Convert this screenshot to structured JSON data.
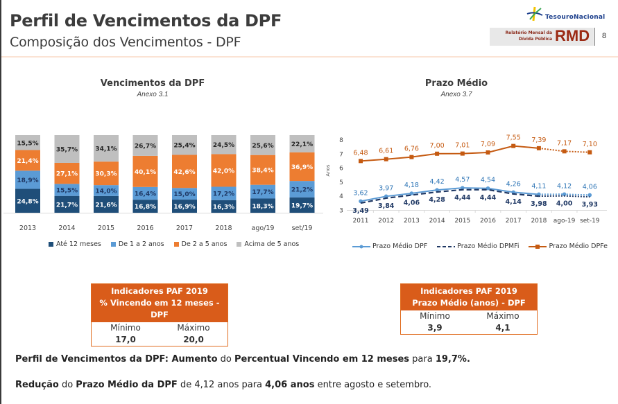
{
  "header": {
    "title": "Perfil de Vencimentos da DPF",
    "subtitle": "Composição dos Vencimentos - DPF",
    "logo_text": "TesouroNacional",
    "report_name_line1": "Relatório Mensal da",
    "report_name_line2": "Dívida Pública",
    "report_abbr": "RMD",
    "page_number": "8"
  },
  "colors": {
    "ate12": "#1f4e79",
    "de1a2": "#5b9bd5",
    "de2a5": "#ed7d31",
    "acima5": "#bfbfbf",
    "dpf_line": "#5b9bd5",
    "dpmfi_line": "#1f3864",
    "dpfe_line": "#c55a11",
    "paf_header": "#d95c1a"
  },
  "chart_data": [
    {
      "type": "bar",
      "stacked": true,
      "title": "Vencimentos da DPF",
      "subtitle": "Anexo 3.1",
      "categories": [
        "2013",
        "2014",
        "2015",
        "2016",
        "2017",
        "2018",
        "ago/19",
        "set/19"
      ],
      "series": [
        {
          "name": "Até 12 meses",
          "values": [
            24.8,
            21.7,
            21.6,
            16.8,
            16.9,
            16.3,
            18.3,
            19.7
          ],
          "labels": [
            "24,8%",
            "21,7%",
            "21,6%",
            "16,8%",
            "16,9%",
            "16,3%",
            "18,3%",
            "19,7%"
          ]
        },
        {
          "name": "De 1 a 2 anos",
          "values": [
            18.9,
            15.5,
            14.0,
            16.4,
            15.0,
            17.2,
            17.7,
            21.2
          ],
          "labels": [
            "18,9%",
            "15,5%",
            "14,0%",
            "16,4%",
            "15,0%",
            "17,2%",
            "17,7%",
            "21,2%"
          ]
        },
        {
          "name": "De 2 a 5 anos",
          "values": [
            21.4,
            27.1,
            30.3,
            40.1,
            42.6,
            42.0,
            38.4,
            36.9
          ],
          "labels": [
            "21,4%",
            "27,1%",
            "30,3%",
            "40,1%",
            "42,6%",
            "42,0%",
            "38,4%",
            "36,9%"
          ]
        },
        {
          "name": "Acima de 5 anos",
          "values": [
            15.5,
            35.7,
            34.1,
            26.7,
            25.4,
            24.5,
            25.6,
            22.1
          ],
          "labels": [
            "15,5%",
            "35,7%",
            "34,1%",
            "26,7%",
            "25,4%",
            "24,5%",
            "25,6%",
            "22,1%"
          ]
        }
      ],
      "ylim": [
        0,
        100
      ],
      "legend": "bottom"
    },
    {
      "type": "line",
      "title": "Prazo Médio",
      "subtitle": "Anexo 3.7",
      "ylabel": "Anos",
      "categories": [
        "2011",
        "2012",
        "2013",
        "2014",
        "2015",
        "2016",
        "2017",
        "2018",
        "ago-19",
        "set-19"
      ],
      "yticks": [
        "3",
        "4",
        "5",
        "6",
        "7",
        "8"
      ],
      "ylim": [
        3,
        8
      ],
      "series": [
        {
          "name": "Prazo Médio DPF",
          "values": [
            3.62,
            3.97,
            4.18,
            4.42,
            4.57,
            4.54,
            4.26,
            4.11,
            4.12,
            4.06
          ],
          "labels": [
            "3,62",
            "3,97",
            "4,18",
            "4,42",
            "4,57",
            "4,54",
            "4,26",
            "4,11",
            "4,12",
            "4,06"
          ]
        },
        {
          "name": "Prazo Médio DPMFi",
          "values": [
            3.49,
            3.84,
            4.06,
            4.28,
            4.44,
            4.44,
            4.14,
            3.98,
            4.0,
            3.93
          ],
          "labels": [
            "3,49",
            "3,84",
            "4,06",
            "4,28",
            "4,44",
            "4,44",
            "4,14",
            "3,98",
            "4,00",
            "3,93"
          ]
        },
        {
          "name": "Prazo Médio DPFe",
          "values": [
            6.48,
            6.61,
            6.76,
            7.0,
            7.01,
            7.09,
            7.55,
            7.39,
            7.17,
            7.1
          ],
          "labels": [
            "6,48",
            "6,61",
            "6,76",
            "7,00",
            "7,01",
            "7,09",
            "7,55",
            "7,39",
            "7,17",
            "7,10"
          ]
        }
      ],
      "legend": "bottom"
    }
  ],
  "paf_left": {
    "header_line1": "Indicadores PAF 2019",
    "header_line2": "% Vincendo em 12 meses - DPF",
    "min_label": "Mínimo",
    "max_label": "Máximo",
    "min_value": "17,0",
    "max_value": "20,0"
  },
  "paf_right": {
    "header_line1": "Indicadores PAF 2019",
    "header_line2": "Prazo Médio (anos) - DPF",
    "min_label": "Mínimo",
    "max_label": "Máximo",
    "min_value": "3,9",
    "max_value": "4,1"
  },
  "notes": {
    "line1": [
      {
        "text": "Perfil de Vencimentos da DPF: ",
        "bold": true
      },
      {
        "text": "Aumento",
        "bold": true
      },
      {
        "text": " do ",
        "bold": false
      },
      {
        "text": "Percentual Vincendo em 12 meses",
        "bold": true
      },
      {
        "text": " para ",
        "bold": false
      },
      {
        "text": "19,7%.",
        "bold": true
      }
    ],
    "line2": [
      {
        "text": "Redução",
        "bold": true
      },
      {
        "text": " do ",
        "bold": false
      },
      {
        "text": "Prazo Médio da DPF",
        "bold": true
      },
      {
        "text": " de 4,12 anos para ",
        "bold": false
      },
      {
        "text": "4,06 anos",
        "bold": true
      },
      {
        "text": " entre agosto e setembro.",
        "bold": false
      }
    ]
  }
}
